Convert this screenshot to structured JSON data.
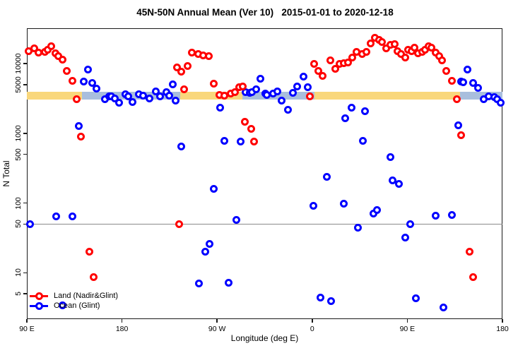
{
  "title": "45N-50N Annual Mean (Ver 10)   2015-01-01 to 2020-12-18",
  "x_axis": {
    "label": "Longitude (deg E)"
  },
  "y_axis": {
    "label": "N Total"
  },
  "legend": [
    {
      "label": "Land (Nadir&Glint)",
      "color": "#ff0000"
    },
    {
      "label": "Ocean (Glint)",
      "color": "#0000ff"
    }
  ],
  "colors": {
    "land": "#ff0000",
    "ocean": "#0000ff",
    "orange_band": "#f9d77c",
    "blue_band": "#a9bedd",
    "reference_line": "#8a8a8a",
    "axis": "#1a1a1a"
  },
  "chart_data": {
    "type": "scatter",
    "title": "45N-50N Annual Mean (Ver 10)   2015-01-01 to 2020-12-18",
    "xlabel": "Longitude (deg E)",
    "ylabel": "N Total",
    "y_scale": "log",
    "ylim": [
      2.17,
      32100
    ],
    "xlim": [
      90,
      540
    ],
    "x_axis_note": "axis spans 450 deg of longitude: 90E -> 180 -> 90W -> 0 -> 90E -> 180; point x = degrees along axis starting at 90",
    "x_ticks": [
      {
        "x": 90,
        "label": "90 E"
      },
      {
        "x": 180,
        "label": "180"
      },
      {
        "x": 270,
        "label": "90 W"
      },
      {
        "x": 360,
        "label": "0"
      },
      {
        "x": 450,
        "label": "90 E"
      },
      {
        "x": 540,
        "label": "180"
      }
    ],
    "y_ticks": [
      {
        "y": 5,
        "label": "5"
      },
      {
        "y": 10,
        "label": "10"
      },
      {
        "y": 50,
        "label": "50"
      },
      {
        "y": 100,
        "label": "100"
      },
      {
        "y": 500,
        "label": "500"
      },
      {
        "y": 1000,
        "label": "1000"
      },
      {
        "y": 5000,
        "label": "5000"
      },
      {
        "y": 10000,
        "label": "10000"
      }
    ],
    "reference_line_y": 50,
    "bands": {
      "n_range": [
        3050,
        3940
      ],
      "orange_segments_x": [
        [
          90,
          540
        ]
      ],
      "blue_segments_x": [
        [
          142,
          235
        ],
        [
          294,
          362
        ],
        [
          500,
          540
        ]
      ]
    },
    "series": [
      {
        "name": "Land (Nadir&Glint)",
        "color": "#ff0000",
        "points": [
          [
            92,
            15200
          ],
          [
            97,
            16700
          ],
          [
            101,
            14500
          ],
          [
            107,
            14800
          ],
          [
            110,
            15900
          ],
          [
            113,
            17900
          ],
          [
            117,
            14100
          ],
          [
            120,
            12900
          ],
          [
            124,
            11400
          ],
          [
            128,
            7900
          ],
          [
            133,
            5700
          ],
          [
            137,
            3100
          ],
          [
            141,
            890
          ],
          [
            149,
            20
          ],
          [
            153,
            8.7
          ],
          [
            232,
            8900
          ],
          [
            234,
            50
          ],
          [
            236,
            7600
          ],
          [
            239,
            4300
          ],
          [
            242,
            9300
          ],
          [
            246,
            14500
          ],
          [
            252,
            13800
          ],
          [
            257,
            13200
          ],
          [
            262,
            12900
          ],
          [
            267,
            5100
          ],
          [
            272,
            3550
          ],
          [
            277,
            3500
          ],
          [
            283,
            3700
          ],
          [
            287,
            3850
          ],
          [
            291,
            4600
          ],
          [
            294,
            4700
          ],
          [
            296,
            1480
          ],
          [
            302,
            1170
          ],
          [
            305,
            760
          ],
          [
            358,
            3400
          ],
          [
            362,
            10000
          ],
          [
            366,
            7900
          ],
          [
            370,
            6700
          ],
          [
            377,
            11200
          ],
          [
            382,
            8500
          ],
          [
            386,
            10000
          ],
          [
            390,
            10100
          ],
          [
            394,
            10400
          ],
          [
            398,
            12300
          ],
          [
            402,
            14800
          ],
          [
            407,
            13800
          ],
          [
            411,
            14800
          ],
          [
            415,
            19600
          ],
          [
            419,
            23600
          ],
          [
            423,
            22000
          ],
          [
            426,
            20500
          ],
          [
            430,
            16700
          ],
          [
            434,
            18700
          ],
          [
            438,
            19000
          ],
          [
            441,
            15200
          ],
          [
            444,
            13800
          ],
          [
            448,
            12300
          ],
          [
            451,
            15900
          ],
          [
            454,
            15200
          ],
          [
            457,
            17100
          ],
          [
            460,
            14100
          ],
          [
            464,
            14800
          ],
          [
            467,
            15600
          ],
          [
            470,
            17900
          ],
          [
            473,
            17100
          ],
          [
            477,
            14500
          ],
          [
            480,
            12900
          ],
          [
            483,
            11200
          ],
          [
            487,
            7900
          ],
          [
            492,
            5600
          ],
          [
            497,
            3100
          ],
          [
            501,
            930
          ],
          [
            509,
            20
          ],
          [
            512,
            8.7
          ]
        ]
      },
      {
        "name": "Ocean (Glint)",
        "color": "#0000ff",
        "points": [
          [
            93,
            50
          ],
          [
            118,
            64
          ],
          [
            124,
            3.4
          ],
          [
            133,
            64
          ],
          [
            139,
            1260
          ],
          [
            144,
            5500
          ],
          [
            148,
            8300
          ],
          [
            152,
            5300
          ],
          [
            156,
            4400
          ],
          [
            164,
            3100
          ],
          [
            168,
            3400
          ],
          [
            170,
            3350
          ],
          [
            173,
            3150
          ],
          [
            177,
            2750
          ],
          [
            183,
            3600
          ],
          [
            186,
            3350
          ],
          [
            190,
            2800
          ],
          [
            196,
            3600
          ],
          [
            200,
            3500
          ],
          [
            206,
            3150
          ],
          [
            212,
            4000
          ],
          [
            216,
            3350
          ],
          [
            222,
            3850
          ],
          [
            225,
            3500
          ],
          [
            228,
            5000
          ],
          [
            231,
            2950
          ],
          [
            236,
            650
          ],
          [
            253,
            7.1
          ],
          [
            259,
            20
          ],
          [
            263,
            26
          ],
          [
            267,
            160
          ],
          [
            273,
            2350
          ],
          [
            277,
            775
          ],
          [
            281,
            7.2
          ],
          [
            288,
            57
          ],
          [
            292,
            760
          ],
          [
            297,
            3850
          ],
          [
            301,
            3800
          ],
          [
            303,
            3900
          ],
          [
            307,
            4300
          ],
          [
            311,
            6000
          ],
          [
            316,
            3700
          ],
          [
            317,
            3550
          ],
          [
            323,
            3700
          ],
          [
            327,
            4000
          ],
          [
            331,
            2950
          ],
          [
            337,
            2200
          ],
          [
            342,
            3800
          ],
          [
            346,
            4700
          ],
          [
            352,
            6500
          ],
          [
            356,
            4600
          ],
          [
            361,
            92
          ],
          [
            368,
            4.4
          ],
          [
            374,
            235
          ],
          [
            378,
            3.9
          ],
          [
            390,
            98
          ],
          [
            391,
            1660
          ],
          [
            397,
            2350
          ],
          [
            403,
            44
          ],
          [
            408,
            775
          ],
          [
            410,
            2100
          ],
          [
            418,
            70
          ],
          [
            421,
            79
          ],
          [
            434,
            460
          ],
          [
            436,
            210
          ],
          [
            442,
            190
          ],
          [
            448,
            32
          ],
          [
            453,
            50
          ],
          [
            458,
            4.3
          ],
          [
            477,
            66
          ],
          [
            484,
            3.2
          ],
          [
            492,
            67
          ],
          [
            498,
            1290
          ],
          [
            501,
            5500
          ],
          [
            503,
            5400
          ],
          [
            507,
            8300
          ],
          [
            512,
            5300
          ],
          [
            517,
            4500
          ],
          [
            522,
            3100
          ],
          [
            527,
            3350
          ],
          [
            532,
            3300
          ],
          [
            535,
            3050
          ],
          [
            538,
            2750
          ]
        ]
      }
    ]
  }
}
